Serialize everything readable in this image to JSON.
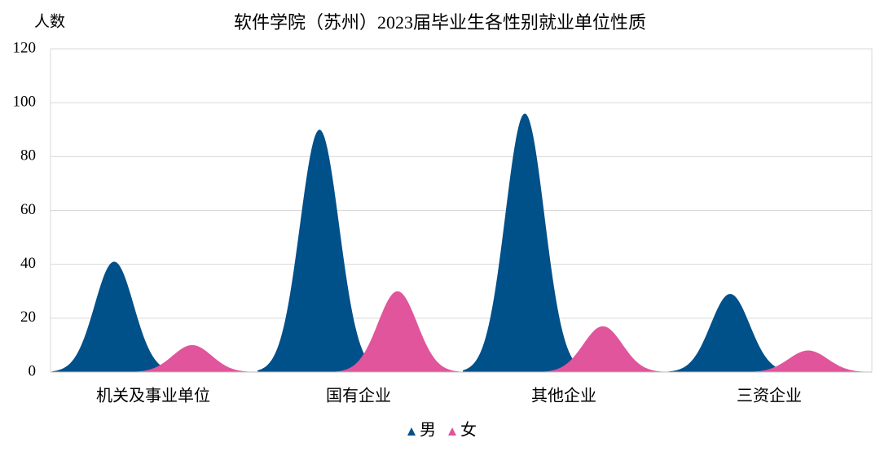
{
  "chart_data": {
    "type": "mountain",
    "title": "软件学院（苏州）2023届毕业生各性别就业单位性质",
    "y_label": "人数",
    "categories": [
      "机关及事业单位",
      "国有企业",
      "其他企业",
      "三资企业"
    ],
    "series": [
      {
        "name": "男",
        "color": "#00508a",
        "values": [
          41,
          90,
          96,
          29
        ]
      },
      {
        "name": "女",
        "color": "#e0559b",
        "values": [
          10,
          30,
          17,
          8
        ]
      }
    ],
    "ylim": [
      0,
      120
    ],
    "yticks": [
      0,
      20,
      40,
      60,
      80,
      100,
      120
    ],
    "grid": true,
    "legend": "bottom"
  }
}
